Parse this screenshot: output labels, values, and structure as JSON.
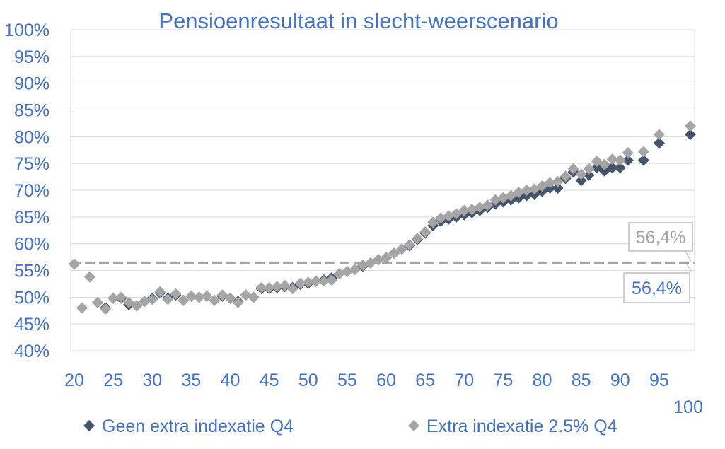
{
  "chart_data": {
    "type": "scatter",
    "title": "Pensioenresultaat in slecht-weerscenario",
    "xlabel": "",
    "ylabel": "",
    "xlim": [
      20,
      100
    ],
    "ylim": [
      40,
      100
    ],
    "x_ticks": [
      "20",
      "25",
      "30",
      "35",
      "40",
      "45",
      "50",
      "55",
      "60",
      "65",
      "70",
      "75",
      "80",
      "85",
      "90",
      "95"
    ],
    "x_end_label": "100",
    "y_ticks": [
      "100%",
      "95%",
      "90%",
      "85%",
      "80%",
      "75%",
      "70%",
      "65%",
      "60%",
      "55%",
      "50%",
      "45%",
      "40%"
    ],
    "grid": "horizontal",
    "legend_position": "bottom",
    "series": [
      {
        "name": "Geen extra indexatie Q4",
        "color": "#44546A",
        "marker": "diamond",
        "points": [
          [
            20,
            56.2
          ],
          [
            21,
            48
          ],
          [
            22,
            53.8
          ],
          [
            23,
            49
          ],
          [
            24,
            48
          ],
          [
            25,
            49.8
          ],
          [
            26,
            49.8
          ],
          [
            27,
            48.6
          ],
          [
            28,
            48.4
          ],
          [
            29,
            49.2
          ],
          [
            30,
            49.8
          ],
          [
            31,
            50.8
          ],
          [
            32,
            49.8
          ],
          [
            33,
            50.4
          ],
          [
            34,
            49.4
          ],
          [
            35,
            50.2
          ],
          [
            36,
            50
          ],
          [
            37,
            50.2
          ],
          [
            38,
            49.4
          ],
          [
            39,
            50.2
          ],
          [
            40,
            49.8
          ],
          [
            41,
            49.2
          ],
          [
            42,
            50.4
          ],
          [
            43,
            50
          ],
          [
            44,
            51.6
          ],
          [
            45,
            51.6
          ],
          [
            46,
            51.8
          ],
          [
            47,
            52
          ],
          [
            48,
            51.8
          ],
          [
            49,
            52.4
          ],
          [
            50,
            52.6
          ],
          [
            51,
            53
          ],
          [
            52,
            53.2
          ],
          [
            53,
            53.6
          ],
          [
            54,
            54.4
          ],
          [
            55,
            54.8
          ],
          [
            56,
            55.2
          ],
          [
            57,
            55.8
          ],
          [
            58,
            56.4
          ],
          [
            59,
            57
          ],
          [
            60,
            57.4
          ],
          [
            61,
            58.2
          ],
          [
            62,
            59
          ],
          [
            63,
            59.6
          ],
          [
            64,
            60.8
          ],
          [
            65,
            62
          ],
          [
            66,
            63.4
          ],
          [
            67,
            64.2
          ],
          [
            68,
            64.6
          ],
          [
            69,
            65
          ],
          [
            70,
            65.4
          ],
          [
            71,
            65.8
          ],
          [
            72,
            66.2
          ],
          [
            73,
            66.8
          ],
          [
            74,
            67.4
          ],
          [
            75,
            67.8
          ],
          [
            76,
            68.2
          ],
          [
            77,
            68.6
          ],
          [
            78,
            69
          ],
          [
            79,
            69.2
          ],
          [
            80,
            69.8
          ],
          [
            81,
            70.4
          ],
          [
            82,
            70.4
          ],
          [
            83,
            72.2
          ],
          [
            84,
            73.4
          ],
          [
            85,
            71.8
          ],
          [
            86,
            72.8
          ],
          [
            87,
            74.2
          ],
          [
            88,
            73.6
          ],
          [
            89,
            74.2
          ],
          [
            90,
            74.2
          ],
          [
            91,
            75.6
          ],
          [
            93,
            75.6
          ],
          [
            95,
            78.8
          ],
          [
            99,
            80.4
          ]
        ]
      },
      {
        "name": "Extra indexatie 2.5% Q4",
        "color": "#A5A5A5",
        "marker": "diamond",
        "points": [
          [
            20,
            56.2
          ],
          [
            21,
            48
          ],
          [
            22,
            53.8
          ],
          [
            23,
            49
          ],
          [
            24,
            47.8
          ],
          [
            25,
            49.8
          ],
          [
            26,
            50
          ],
          [
            27,
            49
          ],
          [
            28,
            48.4
          ],
          [
            29,
            49.2
          ],
          [
            30,
            49.6
          ],
          [
            31,
            51
          ],
          [
            32,
            49.6
          ],
          [
            33,
            50.6
          ],
          [
            34,
            49.4
          ],
          [
            35,
            50.2
          ],
          [
            36,
            50
          ],
          [
            37,
            50.2
          ],
          [
            38,
            49.4
          ],
          [
            39,
            50.4
          ],
          [
            40,
            49.8
          ],
          [
            41,
            49
          ],
          [
            42,
            50.4
          ],
          [
            43,
            50
          ],
          [
            44,
            51.8
          ],
          [
            45,
            51.8
          ],
          [
            46,
            52
          ],
          [
            47,
            52.2
          ],
          [
            48,
            51.6
          ],
          [
            49,
            52.6
          ],
          [
            50,
            52.8
          ],
          [
            51,
            53
          ],
          [
            52,
            53
          ],
          [
            53,
            53.2
          ],
          [
            54,
            54.4
          ],
          [
            55,
            54.8
          ],
          [
            56,
            55.2
          ],
          [
            57,
            56
          ],
          [
            58,
            56.4
          ],
          [
            59,
            57
          ],
          [
            60,
            57.4
          ],
          [
            61,
            58.2
          ],
          [
            62,
            59
          ],
          [
            63,
            59.8
          ],
          [
            64,
            61
          ],
          [
            65,
            62.2
          ],
          [
            66,
            64
          ],
          [
            67,
            64.8
          ],
          [
            68,
            65.2
          ],
          [
            69,
            65.6
          ],
          [
            70,
            66.2
          ],
          [
            71,
            66.4
          ],
          [
            72,
            66.8
          ],
          [
            73,
            67.2
          ],
          [
            74,
            68.2
          ],
          [
            75,
            68.6
          ],
          [
            76,
            69
          ],
          [
            77,
            69.6
          ],
          [
            78,
            70
          ],
          [
            79,
            70.2
          ],
          [
            80,
            70.8
          ],
          [
            81,
            71.4
          ],
          [
            82,
            71.6
          ],
          [
            83,
            72.6
          ],
          [
            84,
            74
          ],
          [
            85,
            73
          ],
          [
            86,
            74
          ],
          [
            87,
            75.4
          ],
          [
            88,
            74.8
          ],
          [
            89,
            75.8
          ],
          [
            90,
            75.6
          ],
          [
            91,
            77
          ],
          [
            93,
            77.2
          ],
          [
            95,
            80.4
          ],
          [
            99,
            82
          ]
        ]
      }
    ],
    "reference_lines": [
      {
        "y": 56.4,
        "style": "dashed",
        "color": "#A5A5A5"
      }
    ],
    "annotations": [
      {
        "text": "56,4%",
        "color": "#A5A5A5"
      },
      {
        "text": "56,4%",
        "color": "#4472C4"
      }
    ]
  }
}
